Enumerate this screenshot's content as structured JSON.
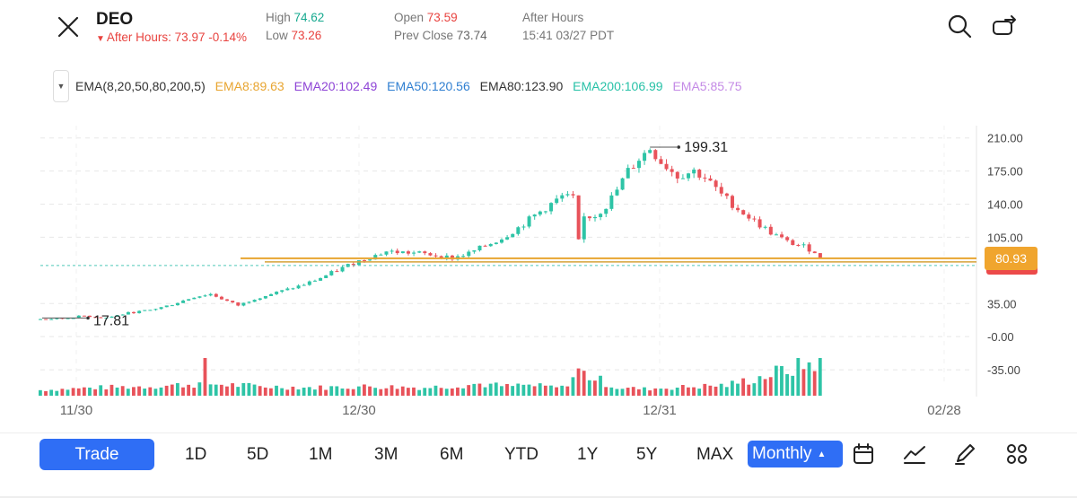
{
  "header": {
    "ticker": "DEO",
    "after_hours_line": "After Hours: 73.97 -0.14%",
    "high_label": "High",
    "high_value": "74.62",
    "low_label": "Low",
    "low_value": "73.26",
    "open_label": "Open",
    "open_value": "73.59",
    "prev_close_label": "Prev Close",
    "prev_close_value": "73.74",
    "session_label": "After Hours",
    "session_time": "15:41 03/27 PDT"
  },
  "ema": {
    "label": "EMA(8,20,50,80,200,5)",
    "items": [
      {
        "text": "EMA8:89.63",
        "color": "#e8a531"
      },
      {
        "text": "EMA20:102.49",
        "color": "#8e44d6"
      },
      {
        "text": "EMA50:120.56",
        "color": "#2f7fd1"
      },
      {
        "text": "EMA80:123.90",
        "color": "#333333"
      },
      {
        "text": "EMA200:106.99",
        "color": "#27c1a7"
      },
      {
        "text": "EMA5:85.75",
        "color": "#c48ae6"
      }
    ]
  },
  "chart_data": {
    "type": "candlestick",
    "y_axis_labels": [
      "210.00",
      "175.00",
      "140.00",
      "105.00",
      "35.00",
      "-0.00",
      "-35.00"
    ],
    "y_axis_values": [
      210,
      175,
      140,
      105,
      35,
      0,
      -35
    ],
    "ylim": [
      -52,
      223
    ],
    "x_axis_labels": [
      "11/30",
      "12/30",
      "12/31",
      "02/28"
    ],
    "high_annotation": "199.31",
    "low_annotation": "17.81",
    "current_price": "80.93",
    "ema_line_level": 80.93,
    "price_trend": [
      [
        0,
        18.5
      ],
      [
        4,
        19
      ],
      [
        8,
        22
      ],
      [
        12,
        20
      ],
      [
        16,
        25
      ],
      [
        20,
        28
      ],
      [
        24,
        34
      ],
      [
        28,
        42
      ],
      [
        31,
        45
      ],
      [
        33,
        40
      ],
      [
        36,
        33
      ],
      [
        39,
        40
      ],
      [
        42,
        45
      ],
      [
        45,
        50
      ],
      [
        48,
        55
      ],
      [
        51,
        62
      ],
      [
        54,
        70
      ],
      [
        57,
        78
      ],
      [
        60,
        84
      ],
      [
        63,
        90
      ],
      [
        66,
        89
      ],
      [
        69,
        88
      ],
      [
        72,
        86
      ],
      [
        75,
        83
      ],
      [
        78,
        88
      ],
      [
        81,
        96
      ],
      [
        84,
        104
      ],
      [
        87,
        115
      ],
      [
        90,
        128
      ],
      [
        93,
        140
      ],
      [
        95,
        148
      ],
      [
        97,
        146
      ],
      [
        98,
        100
      ],
      [
        99,
        126
      ],
      [
        101,
        128
      ],
      [
        103,
        138
      ],
      [
        105,
        155
      ],
      [
        107,
        175
      ],
      [
        109,
        188
      ],
      [
        111,
        199
      ],
      [
        113,
        185
      ],
      [
        116,
        170
      ],
      [
        119,
        175
      ],
      [
        121,
        168
      ],
      [
        124,
        150
      ],
      [
        127,
        135
      ],
      [
        130,
        122
      ],
      [
        133,
        110
      ],
      [
        136,
        100
      ],
      [
        139,
        95
      ],
      [
        141,
        90
      ],
      [
        142,
        82
      ]
    ],
    "volume_trend": [
      [
        0,
        3
      ],
      [
        10,
        5
      ],
      [
        20,
        6
      ],
      [
        29,
        8
      ],
      [
        30,
        24
      ],
      [
        31,
        8
      ],
      [
        40,
        6
      ],
      [
        50,
        5
      ],
      [
        60,
        6
      ],
      [
        70,
        5
      ],
      [
        80,
        8
      ],
      [
        85,
        6
      ],
      [
        88,
        7
      ],
      [
        95,
        5
      ],
      [
        98,
        18
      ],
      [
        105,
        5
      ],
      [
        110,
        4
      ],
      [
        115,
        5
      ],
      [
        120,
        6
      ],
      [
        125,
        7
      ],
      [
        130,
        12
      ],
      [
        135,
        18
      ],
      [
        140,
        24
      ],
      [
        142,
        28
      ]
    ]
  },
  "toolbar": {
    "trade_label": "Trade",
    "periods": [
      "1D",
      "5D",
      "1M",
      "3M",
      "6M",
      "YTD",
      "1Y",
      "5Y",
      "MAX"
    ],
    "interval_label": "Monthly"
  }
}
